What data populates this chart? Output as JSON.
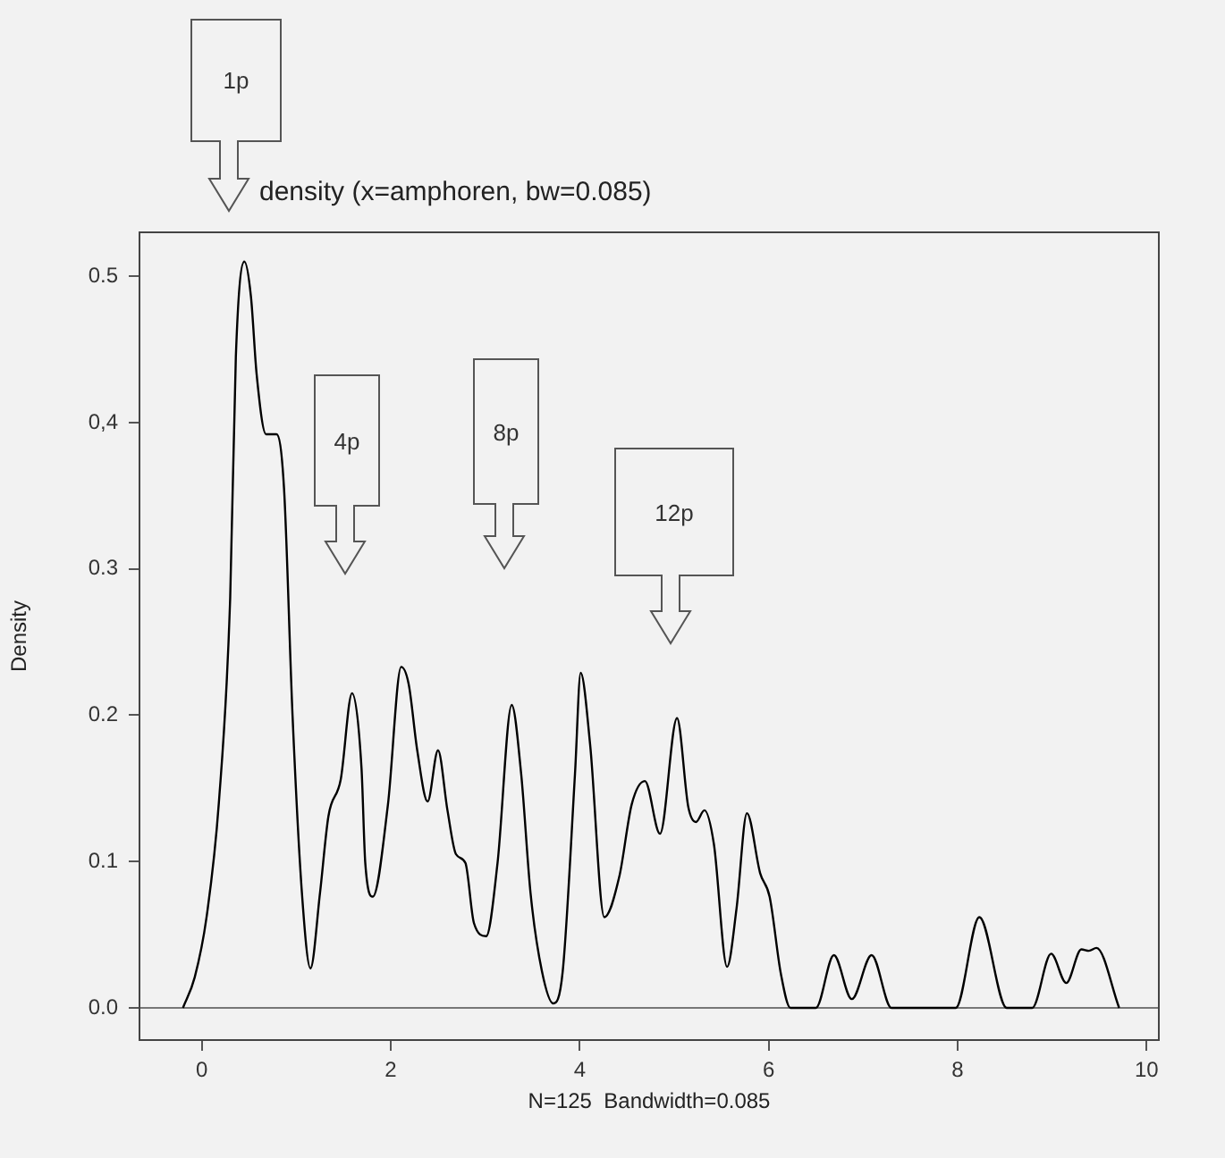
{
  "chart_data": {
    "type": "line",
    "title": "density (x=amphoren, bw=0.085)",
    "xlabel": "N=125  Bandwidth=0.085",
    "ylabel": "Density",
    "x": [
      -0.2,
      -0.075,
      0.05,
      0.18,
      0.3,
      0.36,
      0.45,
      0.52,
      0.58,
      0.68,
      0.79,
      0.87,
      0.96,
      1.06,
      1.15,
      1.25,
      1.34,
      1.47,
      1.59,
      1.69,
      1.73,
      1.81,
      1.97,
      2.11,
      2.19,
      2.28,
      2.39,
      2.5,
      2.6,
      2.69,
      2.79,
      2.88,
      3.01,
      3.13,
      3.28,
      3.38,
      3.48,
      3.6,
      3.72,
      3.82,
      3.95,
      4.01,
      4.11,
      4.26,
      4.42,
      4.55,
      4.69,
      4.85,
      5.03,
      5.15,
      5.23,
      5.32,
      5.42,
      5.56,
      5.66,
      5.77,
      5.91,
      6.01,
      6.13,
      6.23,
      6.5,
      6.69,
      6.88,
      7.09,
      7.3,
      7.98,
      8.23,
      8.52,
      8.79,
      8.99,
      9.15,
      9.31,
      9.39,
      9.47,
      9.71
    ],
    "values": [
      0,
      0.021,
      0.062,
      0.14,
      0.28,
      0.445,
      0.51,
      0.486,
      0.433,
      0.392,
      0.392,
      0.355,
      0.2,
      0.078,
      0.027,
      0.078,
      0.131,
      0.156,
      0.215,
      0.164,
      0.099,
      0.076,
      0.139,
      0.233,
      0.221,
      0.176,
      0.141,
      0.176,
      0.135,
      0.105,
      0.099,
      0.058,
      0.049,
      0.099,
      0.207,
      0.16,
      0.078,
      0.025,
      0.003,
      0.025,
      0.16,
      0.229,
      0.18,
      0.062,
      0.09,
      0.139,
      0.155,
      0.119,
      0.198,
      0.137,
      0.127,
      0.135,
      0.112,
      0.028,
      0.068,
      0.133,
      0.092,
      0.076,
      0.023,
      0,
      0,
      0.036,
      0.006,
      0.036,
      0,
      0,
      0.062,
      0,
      0,
      0.037,
      0.017,
      0.04,
      0.039,
      0.041,
      0
    ],
    "color": "#000000",
    "marker": "none",
    "line_style": "solid",
    "xlim": [
      -0.66,
      10.13
    ],
    "ylim": [
      -0.022,
      0.53
    ],
    "xticks": [
      0,
      2,
      4,
      6,
      8,
      10
    ],
    "yticks": [
      {
        "value": 0,
        "label": "0.0"
      },
      0.1,
      0.2,
      0.3,
      {
        "value": 0.4,
        "label": "0,4"
      },
      0.5
    ],
    "ref_lines": [
      {
        "axis": "y",
        "value": 0,
        "color": "#777777"
      }
    ],
    "annotations": [
      "1p",
      "4p",
      "8p",
      "12p"
    ]
  }
}
